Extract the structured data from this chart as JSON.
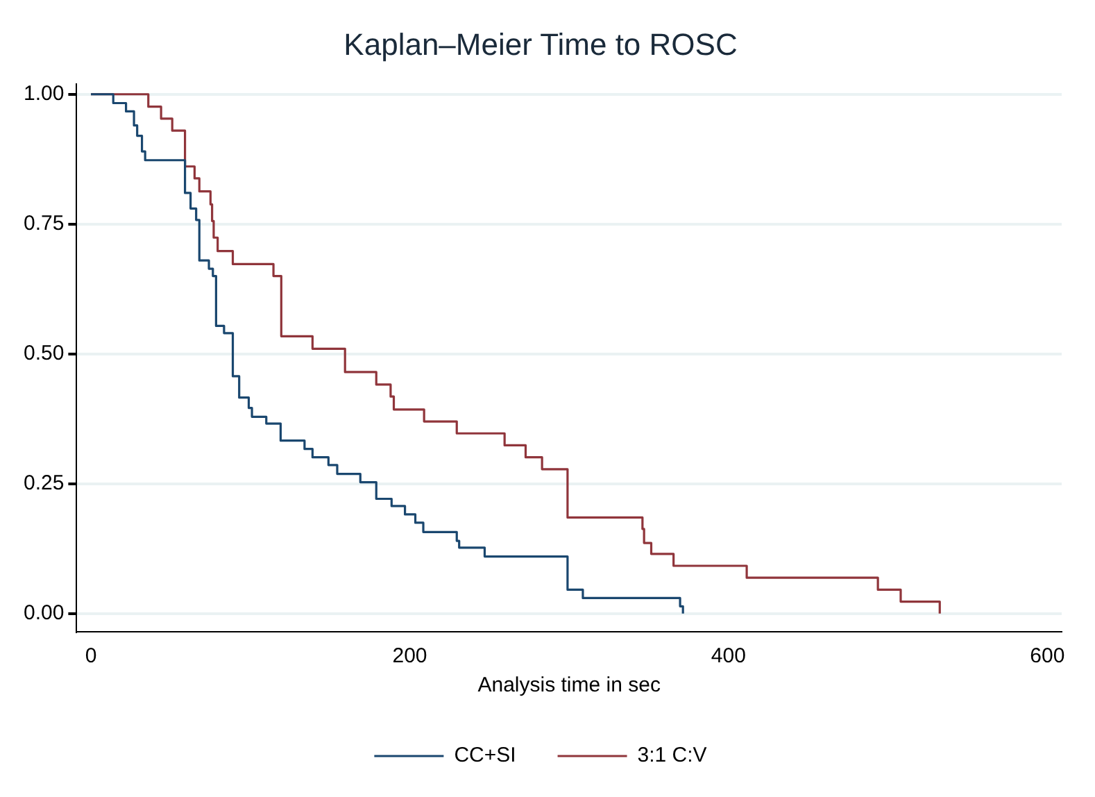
{
  "chart_data": {
    "type": "step",
    "title": "Kaplan–Meier Time to ROSC",
    "xlabel": "Analysis time in sec",
    "xlim": [
      -9,
      609
    ],
    "xticks": [
      0,
      200,
      400,
      600
    ],
    "ylim": [
      -0.035,
      1.02
    ],
    "yticks": [
      {
        "value": 0,
        "label": "0.00"
      },
      {
        "value": 0.25,
        "label": "0.25"
      },
      {
        "value": 0.5,
        "label": "0.50"
      },
      {
        "value": 0.75,
        "label": "0.75"
      },
      {
        "value": 1,
        "label": "1.00"
      }
    ],
    "grid": "y",
    "legend": "bottom",
    "marker": "none",
    "line_style": "solid",
    "series": [
      {
        "name": "CC+SI",
        "color": "#1a476f",
        "x": [
          0,
          14,
          22,
          27,
          29,
          32,
          34,
          59,
          62.5,
          66,
          68,
          74,
          76.5,
          78.5,
          83.5,
          89,
          93,
          99,
          101,
          110,
          119,
          134,
          139,
          149,
          154.5,
          169,
          179,
          188.6,
          197,
          203.5,
          208.5,
          229.5,
          231,
          247,
          299,
          308.6,
          369.6,
          371.4
        ],
        "values": [
          1,
          0.983,
          0.967,
          0.94,
          0.92,
          0.89,
          0.873,
          0.81,
          0.78,
          0.758,
          0.68,
          0.664,
          0.65,
          0.554,
          0.54,
          0.457,
          0.416,
          0.396,
          0.379,
          0.366,
          0.333,
          0.317,
          0.301,
          0.286,
          0.269,
          0.253,
          0.221,
          0.207,
          0.191,
          0.175,
          0.157,
          0.14,
          0.127,
          0.11,
          0.046,
          0.03,
          0.014,
          0
        ]
      },
      {
        "name": "3:1 C:V",
        "color": "#90353b",
        "x": [
          0,
          36,
          44,
          51,
          59,
          65,
          68,
          75,
          76,
          77,
          79.5,
          89,
          114.5,
          119.4,
          139,
          159.4,
          179,
          188,
          190,
          209,
          229.5,
          259.5,
          272.7,
          283,
          299,
          346,
          347,
          351.5,
          365.5,
          411.4,
          493.7,
          508,
          532.5
        ],
        "values": [
          1,
          0.976,
          0.953,
          0.93,
          0.861,
          0.838,
          0.813,
          0.788,
          0.756,
          0.724,
          0.698,
          0.673,
          0.65,
          0.534,
          0.51,
          0.465,
          0.441,
          0.418,
          0.393,
          0.37,
          0.347,
          0.324,
          0.301,
          0.278,
          0.185,
          0.163,
          0.136,
          0.115,
          0.092,
          0.069,
          0.046,
          0.023,
          0
        ]
      }
    ]
  }
}
